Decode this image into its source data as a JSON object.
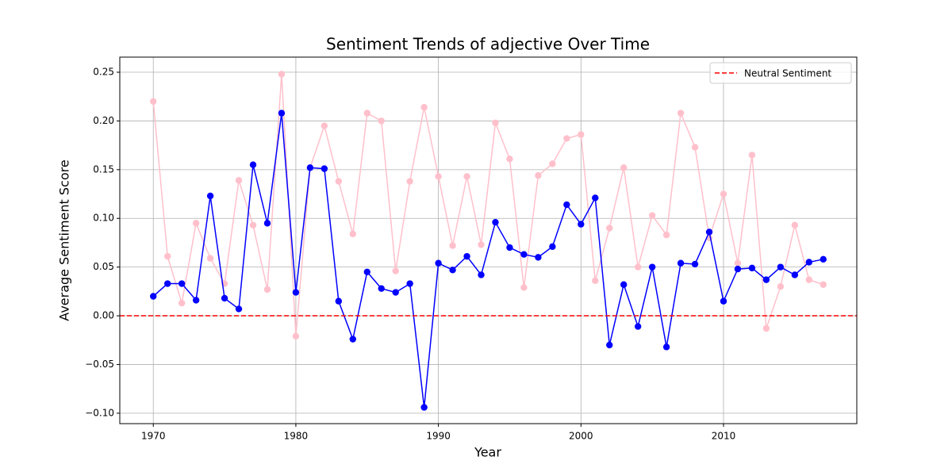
{
  "chart_data": {
    "type": "line",
    "title": "Sentiment Trends of adjective Over Time",
    "x_label": "Year",
    "y_label": "Average Sentiment Score",
    "x": [
      1970,
      1971,
      1972,
      1973,
      1974,
      1975,
      1976,
      1977,
      1978,
      1979,
      1980,
      1981,
      1982,
      1983,
      1984,
      1985,
      1986,
      1987,
      1988,
      1989,
      1990,
      1991,
      1992,
      1993,
      1994,
      1995,
      1996,
      1997,
      1998,
      1999,
      2000,
      2001,
      2002,
      2003,
      2004,
      2005,
      2006,
      2007,
      2008,
      2009,
      2010,
      2011,
      2012,
      2013,
      2014,
      2015,
      2016,
      2017
    ],
    "series": [
      {
        "color": "pink",
        "values": [
          0.22,
          0.061,
          0.013,
          0.095,
          0.059,
          0.033,
          0.139,
          0.093,
          0.027,
          0.248,
          -0.021,
          0.152,
          0.195,
          0.138,
          0.084,
          0.208,
          0.2,
          0.046,
          0.138,
          0.214,
          0.143,
          0.072,
          0.143,
          0.073,
          0.198,
          0.161,
          0.029,
          0.144,
          0.156,
          0.182,
          0.186,
          0.036,
          0.09,
          0.152,
          0.05,
          0.103,
          0.083,
          0.208,
          0.173,
          0.08,
          0.125,
          0.054,
          0.165,
          -0.013,
          0.03,
          0.093,
          0.037,
          0.032
        ]
      },
      {
        "color": "blue",
        "values": [
          0.02,
          0.033,
          0.033,
          0.016,
          0.123,
          0.018,
          0.007,
          0.155,
          0.095,
          0.208,
          0.024,
          0.152,
          0.151,
          0.015,
          -0.024,
          0.045,
          0.028,
          0.024,
          0.033,
          -0.094,
          0.054,
          0.047,
          0.061,
          0.042,
          0.096,
          0.07,
          0.063,
          0.06,
          0.071,
          0.114,
          0.094,
          0.121,
          -0.03,
          0.032,
          -0.011,
          0.05,
          -0.032,
          0.054,
          0.053,
          0.086,
          0.015,
          0.048,
          0.049,
          0.037,
          0.05,
          0.042,
          0.055,
          0.058
        ]
      }
    ],
    "hline": {
      "value": 0,
      "label": "Neutral Sentiment",
      "color": "red",
      "style": "dashed"
    },
    "xlim": [
      1967.65,
      2019.35
    ],
    "ylim": [
      -0.1107,
      0.2655
    ],
    "xticks": [
      1970,
      1980,
      1990,
      2000,
      2010
    ],
    "yticks": [
      {
        "value": -0.1,
        "label": "−0.10"
      },
      {
        "value": -0.05,
        "label": "−0.05"
      },
      {
        "value": 0,
        "label": "0.00"
      },
      {
        "value": 0.05,
        "label": "0.05"
      },
      {
        "value": 0.1,
        "label": "0.10"
      },
      {
        "value": 0.15,
        "label": "0.15"
      },
      {
        "value": 0.2,
        "label": "0.20"
      },
      {
        "value": 0.25,
        "label": "0.25"
      }
    ],
    "grid": true,
    "legend": "upper right"
  }
}
